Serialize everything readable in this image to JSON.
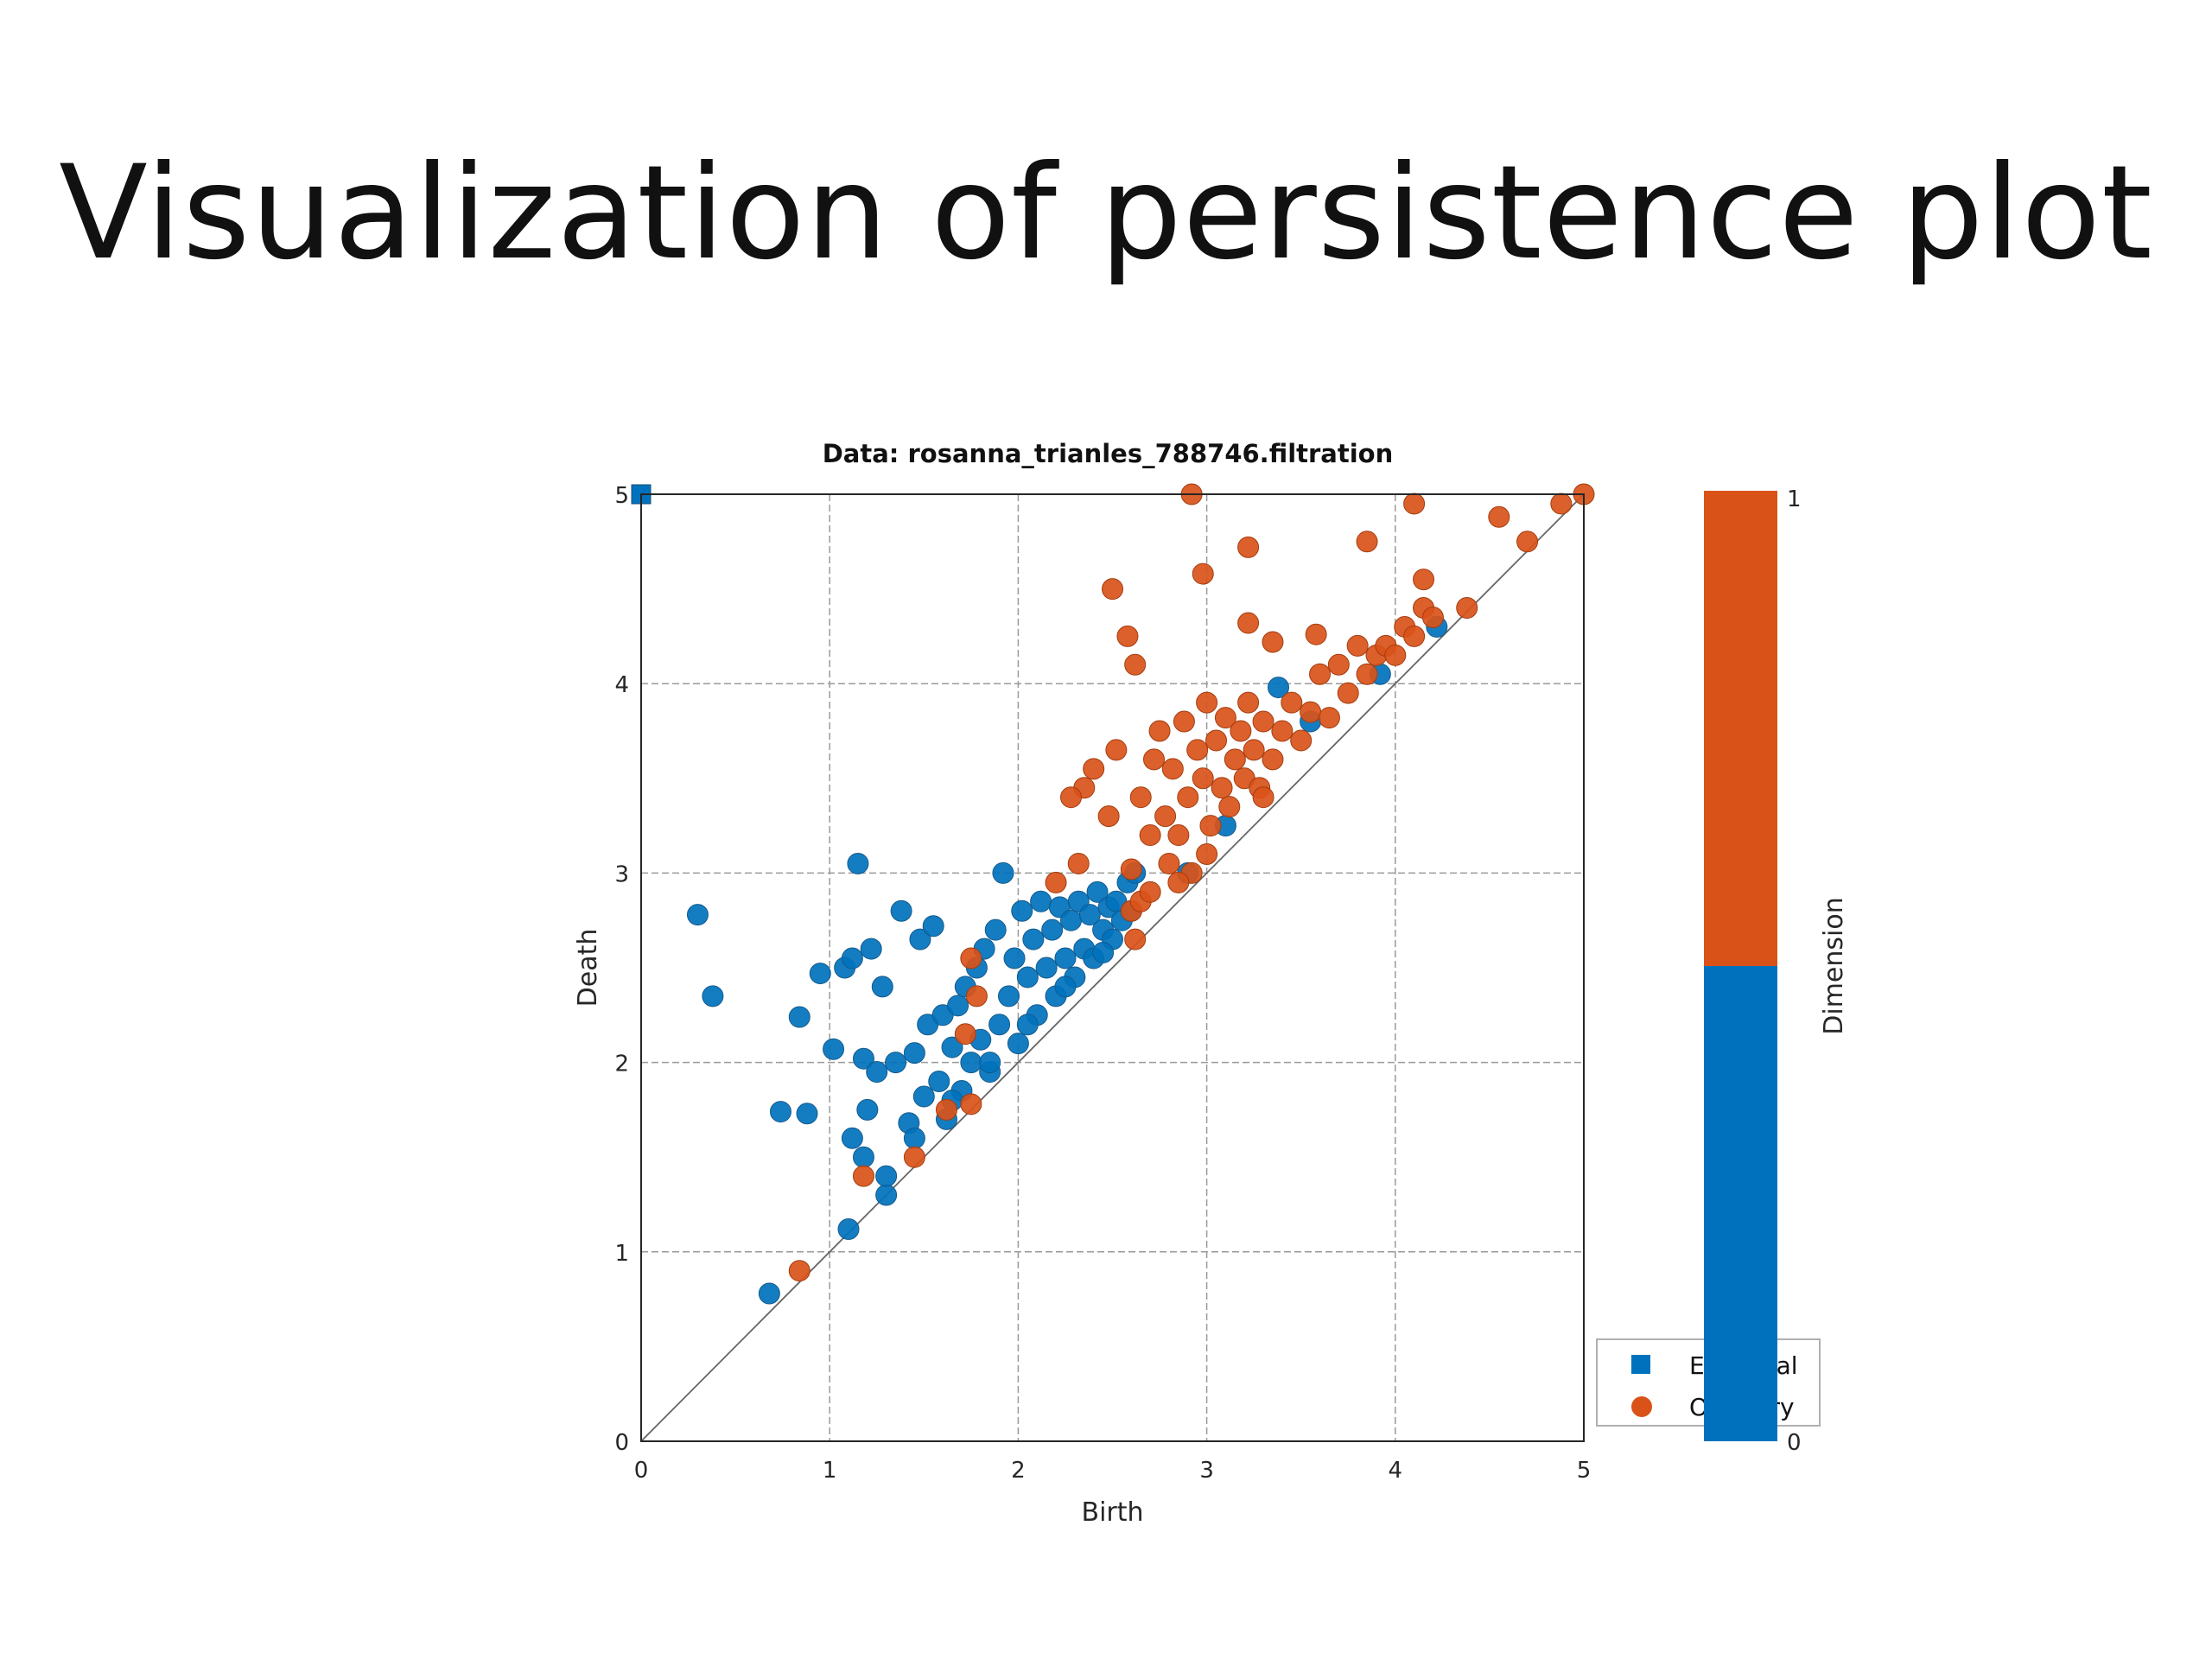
{
  "slide": {
    "title": "Visualization of persistence plot"
  },
  "colors": {
    "essential": "#0072BD",
    "ordinary": "#D95319",
    "grid": "#9a9a9a",
    "axis": "#262626"
  },
  "chart_data": {
    "type": "scatter",
    "title": "Data: rosanna_trianles_788746.filtration",
    "xlabel": "Birth",
    "ylabel": "Death",
    "xlim": [
      0,
      5
    ],
    "ylim": [
      0,
      5
    ],
    "xticks": [
      "0",
      "1",
      "2",
      "3",
      "4",
      "5"
    ],
    "yticks": [
      "0",
      "1",
      "2",
      "3",
      "4",
      "5"
    ],
    "grid": true,
    "diagonal": true,
    "legend": {
      "position": "bottom-right",
      "entries": [
        "Essential",
        "Ordinary"
      ]
    },
    "colorbar": {
      "label": "Dimension",
      "ticks": [
        "0",
        "1"
      ]
    },
    "series": [
      {
        "name": "Essential",
        "marker": "square",
        "points": [
          [
            0.0,
            5.0
          ]
        ]
      },
      {
        "name": "Dimension 0",
        "marker": "circle",
        "points": [
          [
            0.3,
            2.78
          ],
          [
            0.38,
            2.35
          ],
          [
            0.68,
            0.78
          ],
          [
            0.74,
            1.74
          ],
          [
            0.84,
            2.24
          ],
          [
            0.88,
            1.73
          ],
          [
            0.95,
            2.47
          ],
          [
            1.02,
            2.07
          ],
          [
            1.08,
            2.5
          ],
          [
            1.1,
            1.12
          ],
          [
            1.12,
            2.55
          ],
          [
            1.12,
            1.6
          ],
          [
            1.15,
            3.05
          ],
          [
            1.18,
            2.02
          ],
          [
            1.18,
            1.5
          ],
          [
            1.2,
            1.75
          ],
          [
            1.22,
            2.6
          ],
          [
            1.25,
            1.95
          ],
          [
            1.28,
            2.4
          ],
          [
            1.3,
            1.3
          ],
          [
            1.35,
            2.0
          ],
          [
            1.38,
            2.8
          ],
          [
            1.42,
            1.68
          ],
          [
            1.45,
            2.05
          ],
          [
            1.48,
            2.65
          ],
          [
            1.5,
            1.82
          ],
          [
            1.52,
            2.2
          ],
          [
            1.55,
            2.72
          ],
          [
            1.58,
            1.9
          ],
          [
            1.6,
            2.25
          ],
          [
            1.62,
            1.7
          ],
          [
            1.65,
            2.08
          ],
          [
            1.68,
            2.3
          ],
          [
            1.7,
            1.85
          ],
          [
            1.72,
            2.4
          ],
          [
            1.75,
            2.0
          ],
          [
            1.78,
            2.5
          ],
          [
            1.8,
            2.12
          ],
          [
            1.82,
            2.6
          ],
          [
            1.85,
            1.95
          ],
          [
            1.88,
            2.7
          ],
          [
            1.9,
            2.2
          ],
          [
            1.92,
            3.0
          ],
          [
            1.95,
            2.35
          ],
          [
            1.98,
            2.55
          ],
          [
            2.0,
            2.1
          ],
          [
            2.02,
            2.8
          ],
          [
            2.05,
            2.45
          ],
          [
            2.08,
            2.65
          ],
          [
            2.1,
            2.25
          ],
          [
            2.12,
            2.85
          ],
          [
            2.15,
            2.5
          ],
          [
            2.18,
            2.7
          ],
          [
            2.2,
            2.35
          ],
          [
            2.22,
            2.82
          ],
          [
            2.25,
            2.55
          ],
          [
            2.28,
            2.75
          ],
          [
            2.3,
            2.45
          ],
          [
            2.32,
            2.85
          ],
          [
            2.35,
            2.6
          ],
          [
            2.38,
            2.78
          ],
          [
            2.4,
            2.55
          ],
          [
            2.42,
            2.9
          ],
          [
            2.45,
            2.7
          ],
          [
            2.48,
            2.82
          ],
          [
            2.5,
            2.65
          ],
          [
            2.52,
            2.85
          ],
          [
            2.55,
            2.75
          ],
          [
            2.58,
            2.95
          ],
          [
            2.6,
            2.8
          ],
          [
            2.62,
            3.0
          ],
          [
            2.45,
            2.58
          ],
          [
            2.25,
            2.4
          ],
          [
            2.05,
            2.2
          ],
          [
            1.85,
            2.0
          ],
          [
            1.65,
            1.8
          ],
          [
            1.45,
            1.6
          ],
          [
            1.3,
            1.4
          ],
          [
            3.38,
            3.98
          ],
          [
            3.55,
            3.8
          ],
          [
            3.92,
            4.05
          ],
          [
            4.22,
            4.3
          ],
          [
            3.1,
            3.25
          ],
          [
            2.9,
            3.0
          ]
        ]
      },
      {
        "name": "Dimension 1",
        "marker": "circle",
        "points": [
          [
            0.84,
            0.9
          ],
          [
            1.18,
            1.4
          ],
          [
            1.45,
            1.5
          ],
          [
            1.62,
            1.75
          ],
          [
            1.75,
            1.78
          ],
          [
            1.78,
            2.35
          ],
          [
            2.2,
            2.95
          ],
          [
            2.6,
            2.8
          ],
          [
            2.62,
            2.65
          ],
          [
            2.65,
            3.4
          ],
          [
            2.7,
            3.2
          ],
          [
            2.72,
            3.6
          ],
          [
            2.75,
            3.75
          ],
          [
            2.78,
            3.3
          ],
          [
            2.8,
            3.05
          ],
          [
            2.82,
            3.55
          ],
          [
            2.85,
            3.2
          ],
          [
            2.88,
            3.8
          ],
          [
            2.9,
            3.4
          ],
          [
            2.92,
            3.0
          ],
          [
            2.95,
            3.65
          ],
          [
            2.98,
            3.5
          ],
          [
            3.0,
            3.9
          ],
          [
            3.02,
            3.25
          ],
          [
            3.05,
            3.7
          ],
          [
            3.08,
            3.45
          ],
          [
            3.1,
            3.82
          ],
          [
            3.12,
            3.35
          ],
          [
            3.15,
            3.6
          ],
          [
            3.18,
            3.75
          ],
          [
            3.2,
            3.5
          ],
          [
            3.22,
            3.9
          ],
          [
            3.25,
            3.65
          ],
          [
            3.28,
            3.45
          ],
          [
            3.3,
            3.8
          ],
          [
            3.35,
            3.6
          ],
          [
            3.4,
            3.75
          ],
          [
            3.45,
            3.9
          ],
          [
            3.5,
            3.7
          ],
          [
            3.55,
            3.85
          ],
          [
            3.6,
            4.05
          ],
          [
            3.65,
            3.82
          ],
          [
            3.7,
            4.1
          ],
          [
            3.75,
            3.95
          ],
          [
            3.8,
            4.2
          ],
          [
            3.85,
            4.05
          ],
          [
            3.9,
            4.15
          ],
          [
            3.95,
            4.2
          ],
          [
            4.0,
            4.15
          ],
          [
            4.05,
            4.3
          ],
          [
            4.1,
            4.25
          ],
          [
            4.15,
            4.4
          ],
          [
            4.2,
            4.35
          ],
          [
            2.5,
            4.5
          ],
          [
            2.58,
            4.25
          ],
          [
            2.62,
            4.1
          ],
          [
            2.92,
            5.0
          ],
          [
            2.98,
            4.58
          ],
          [
            3.22,
            4.72
          ],
          [
            3.22,
            4.32
          ],
          [
            3.35,
            4.22
          ],
          [
            3.58,
            4.26
          ],
          [
            3.85,
            4.75
          ],
          [
            4.1,
            4.95
          ],
          [
            4.15,
            4.55
          ],
          [
            4.38,
            4.4
          ],
          [
            4.55,
            4.88
          ],
          [
            4.7,
            4.75
          ],
          [
            4.88,
            4.95
          ],
          [
            5.0,
            5.0
          ],
          [
            2.4,
            3.55
          ],
          [
            2.52,
            3.65
          ],
          [
            2.48,
            3.3
          ],
          [
            2.35,
            3.45
          ],
          [
            2.32,
            3.05
          ],
          [
            2.28,
            3.4
          ],
          [
            1.75,
            2.55
          ],
          [
            1.72,
            2.15
          ],
          [
            2.65,
            2.85
          ],
          [
            2.6,
            3.02
          ],
          [
            2.7,
            2.9
          ],
          [
            3.0,
            3.1
          ],
          [
            2.85,
            2.95
          ],
          [
            3.3,
            3.4
          ]
        ]
      }
    ]
  }
}
